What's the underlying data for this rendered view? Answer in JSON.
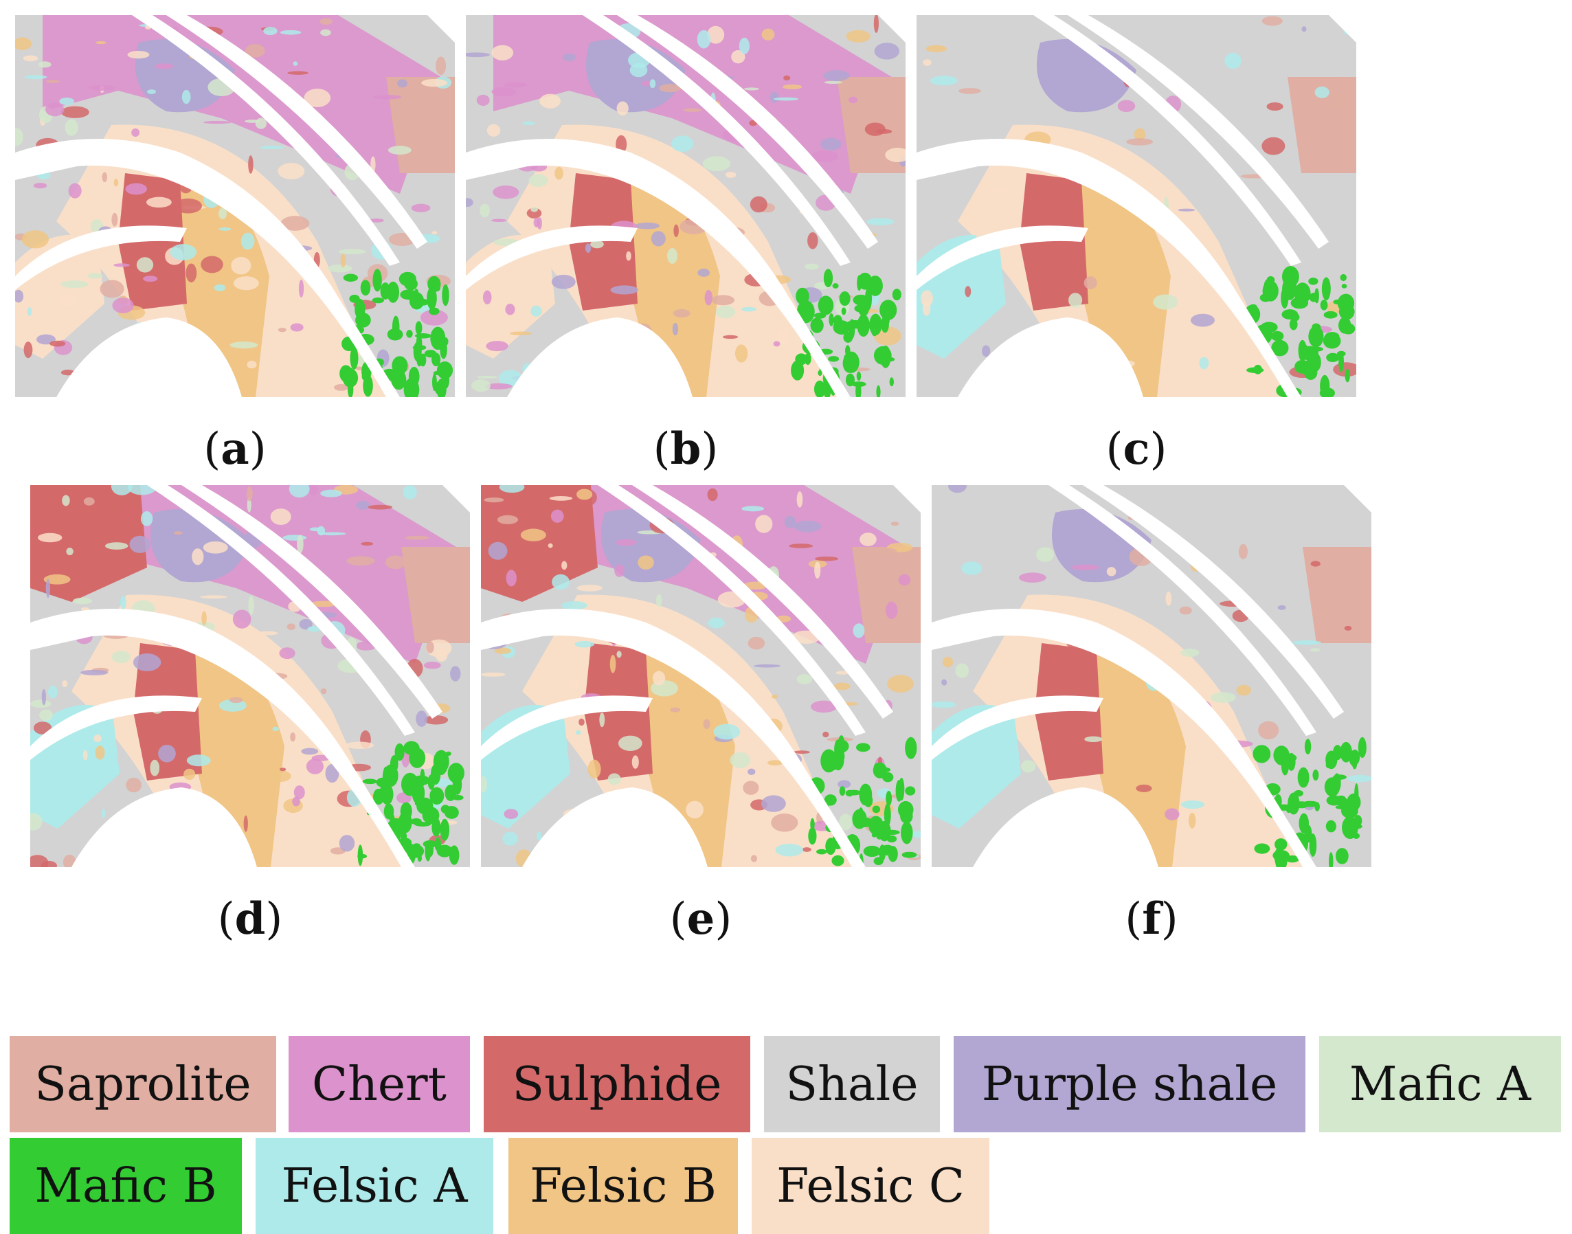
{
  "panels": [
    {
      "id": "a",
      "label": "a"
    },
    {
      "id": "b",
      "label": "b"
    },
    {
      "id": "c",
      "label": "c"
    },
    {
      "id": "d",
      "label": "d"
    },
    {
      "id": "e",
      "label": "e"
    },
    {
      "id": "f",
      "label": "f"
    }
  ],
  "legend": [
    {
      "label": "Saprolite",
      "color": "#e0aea2"
    },
    {
      "label": "Chert",
      "color": "#dc92cc"
    },
    {
      "label": "Sulphide",
      "color": "#d4696a"
    },
    {
      "label": "Shale",
      "color": "#d3d3d3"
    },
    {
      "label": "Purple shale",
      "color": "#b2a6d2"
    },
    {
      "label": "Mafic A",
      "color": "#d3e8cd"
    },
    {
      "label": "Mafic B",
      "color": "#33cc33"
    },
    {
      "label": "Felsic A",
      "color": "#aeeaea"
    },
    {
      "label": "Felsic B",
      "color": "#f0c585"
    },
    {
      "label": "Felsic C",
      "color": "#fadfc8"
    }
  ]
}
